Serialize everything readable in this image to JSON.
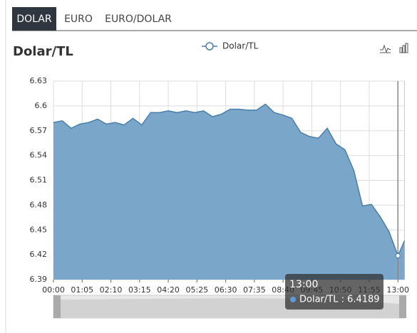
{
  "tabs": [
    "DOLAR",
    "EURO",
    "EURO/DOLAR"
  ],
  "chart_data": {
    "type": "area",
    "title": "Dolar/TL",
    "x": [
      0,
      20,
      40,
      60,
      80,
      100,
      120,
      140,
      160,
      180,
      200,
      220,
      240,
      260,
      280,
      300,
      320,
      340,
      360,
      380,
      400,
      420,
      440,
      460,
      480,
      500,
      520,
      540,
      560,
      580,
      600,
      620,
      640,
      660,
      680,
      700,
      720,
      740,
      760,
      780,
      795
    ],
    "series": [
      {
        "name": "Dolar/TL",
        "color": "#7aa6c9",
        "values": [
          6.58,
          6.582,
          6.573,
          6.578,
          6.58,
          6.584,
          6.578,
          6.58,
          6.577,
          6.585,
          6.577,
          6.592,
          6.592,
          6.594,
          6.592,
          6.594,
          6.592,
          6.594,
          6.587,
          6.59,
          6.596,
          6.596,
          6.595,
          6.595,
          6.602,
          6.592,
          6.589,
          6.585,
          6.568,
          6.563,
          6.561,
          6.573,
          6.554,
          6.547,
          6.522,
          6.479,
          6.481,
          6.466,
          6.448,
          6.4189,
          6.437
        ]
      }
    ],
    "xlim": [
      0,
      795
    ],
    "xticks": [
      {
        "value": 0,
        "label": "00:00"
      },
      {
        "value": 65,
        "label": "01:05"
      },
      {
        "value": 130,
        "label": "02:10"
      },
      {
        "value": 195,
        "label": "03:15"
      },
      {
        "value": 260,
        "label": "04:20"
      },
      {
        "value": 325,
        "label": "05:25"
      },
      {
        "value": 390,
        "label": "06:30"
      },
      {
        "value": 455,
        "label": "07:35"
      },
      {
        "value": 520,
        "label": "08:40"
      },
      {
        "value": 585,
        "label": "09:45"
      },
      {
        "value": 650,
        "label": "10:50"
      },
      {
        "value": 715,
        "label": "11:55"
      },
      {
        "value": 780,
        "label": "13:00"
      }
    ],
    "ylim": [
      6.39,
      6.63
    ],
    "yticks": [
      6.39,
      6.42,
      6.45,
      6.48,
      6.51,
      6.54,
      6.57,
      6.6,
      6.63
    ],
    "grid": true,
    "tooltip": {
      "title": "13:00",
      "text": "Dolar/TL : 6.4189",
      "index": 39
    }
  }
}
